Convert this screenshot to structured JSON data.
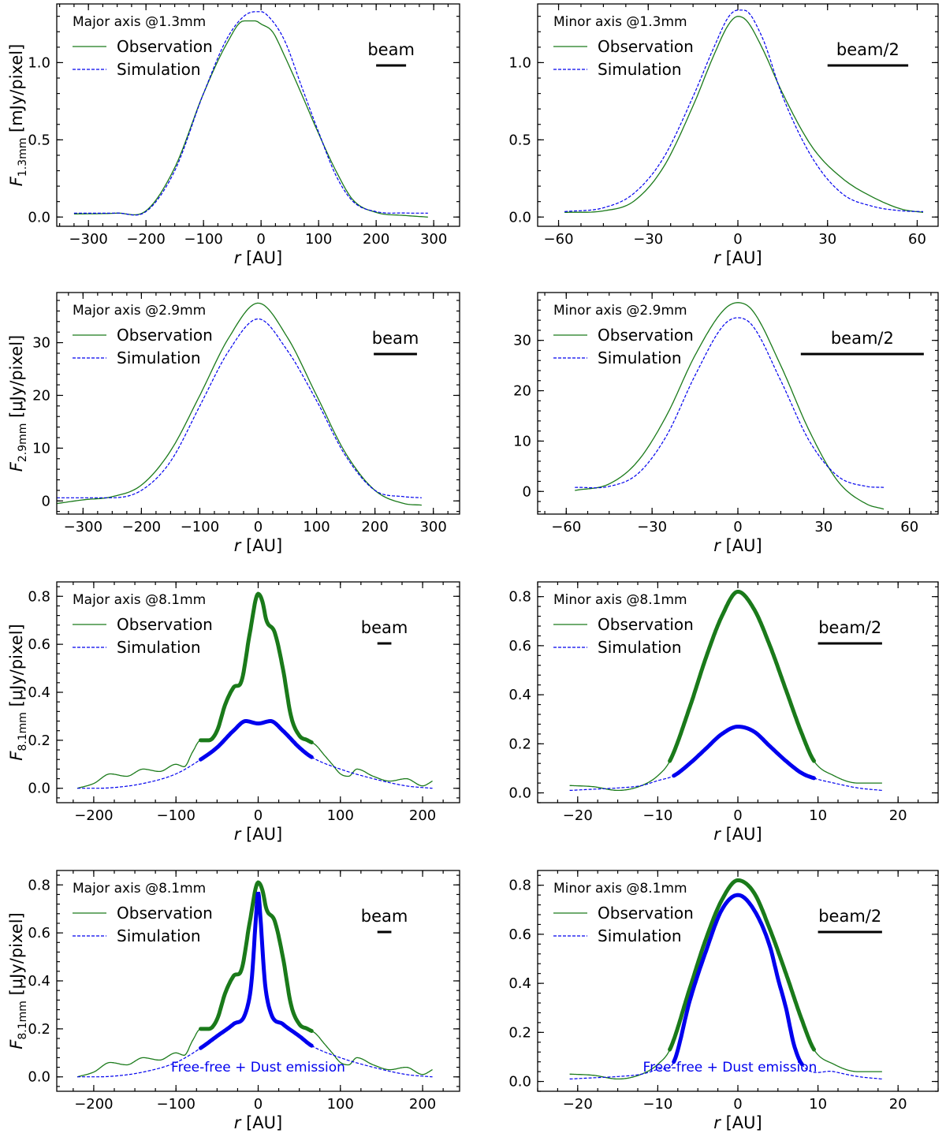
{
  "colors": {
    "observation": "#1a7a1a",
    "simulation": "#0000ee",
    "axes": "#000000"
  },
  "legend": {
    "observation": "Observation",
    "simulation": "Simulation"
  },
  "xlabel": "r [AU]",
  "ylabels": [
    {
      "var": "F",
      "sub": "1.3mm",
      "unit": "[mJy/pixel]"
    },
    {
      "var": "F",
      "sub": "2.9mm",
      "unit": "[μJy/pixel]"
    },
    {
      "var": "F",
      "sub": "8.1mm",
      "unit": "[μJy/pixel]"
    },
    {
      "var": "F",
      "sub": "8.1mm",
      "unit": "[μJy/pixel]"
    }
  ],
  "chart_data": [
    {
      "id": "p1",
      "type": "line",
      "title": "Major axis @1.3mm",
      "beam_label": "beam",
      "beam_range": [
        200,
        252
      ],
      "xlim": [
        -355,
        345
      ],
      "ylim": [
        -0.06,
        1.38
      ],
      "xticks": [
        -300,
        -200,
        -100,
        0,
        100,
        200,
        300
      ],
      "yticks": [
        0,
        0.5,
        1.0
      ],
      "ytick_labels": [
        "0.0",
        "0.5",
        "1.0"
      ],
      "observation": {
        "x": [
          -325,
          -250,
          -200,
          -150,
          -100,
          -60,
          -30,
          -10,
          0,
          20,
          40,
          70,
          100,
          130,
          160,
          200,
          250,
          290
        ],
        "y": [
          0.02,
          0.025,
          0.04,
          0.32,
          0.8,
          1.12,
          1.27,
          1.27,
          1.25,
          1.2,
          1.05,
          0.8,
          0.54,
          0.3,
          0.11,
          0.03,
          0.01,
          0.0
        ],
        "style": "thin"
      },
      "simulation": {
        "x": [
          -325,
          -250,
          -200,
          -150,
          -100,
          -60,
          -30,
          -10,
          0,
          10,
          40,
          70,
          100,
          130,
          160,
          200,
          250,
          290
        ],
        "y": [
          0.025,
          0.026,
          0.035,
          0.3,
          0.8,
          1.15,
          1.3,
          1.33,
          1.33,
          1.31,
          1.15,
          0.85,
          0.55,
          0.27,
          0.1,
          0.035,
          0.026,
          0.025
        ],
        "style": "dashed"
      },
      "annotation": ""
    },
    {
      "id": "p2",
      "type": "line",
      "title": "Minor axis @1.3mm",
      "beam_label": "beam/2",
      "beam_range": [
        30,
        57
      ],
      "xlim": [
        -67,
        67
      ],
      "ylim": [
        -0.06,
        1.38
      ],
      "xticks": [
        -60,
        -30,
        0,
        30,
        60
      ],
      "yticks": [
        0,
        0.5,
        1.0
      ],
      "ytick_labels": [
        "0.0",
        "0.5",
        "1.0"
      ],
      "observation": {
        "x": [
          -58,
          -45,
          -35,
          -25,
          -15,
          -8,
          -3,
          0,
          3,
          8,
          15,
          25,
          35,
          45,
          55,
          62
        ],
        "y": [
          0.03,
          0.04,
          0.1,
          0.32,
          0.72,
          1.05,
          1.25,
          1.3,
          1.27,
          1.1,
          0.8,
          0.45,
          0.25,
          0.13,
          0.05,
          0.03
        ],
        "style": "thin"
      },
      "simulation": {
        "x": [
          -58,
          -45,
          -35,
          -25,
          -15,
          -8,
          -3,
          0,
          2,
          8,
          15,
          25,
          35,
          45,
          55,
          62
        ],
        "y": [
          0.035,
          0.06,
          0.15,
          0.38,
          0.78,
          1.1,
          1.3,
          1.34,
          1.34,
          1.17,
          0.78,
          0.38,
          0.15,
          0.07,
          0.04,
          0.035
        ],
        "style": "dashed"
      },
      "annotation": ""
    },
    {
      "id": "p3",
      "type": "line",
      "title": "Major axis @2.9mm",
      "beam_label": "beam",
      "beam_range": [
        198,
        272
      ],
      "xlim": [
        -345,
        345
      ],
      "ylim": [
        -2.5,
        39.5
      ],
      "xticks": [
        -300,
        -200,
        -100,
        0,
        100,
        200,
        300
      ],
      "yticks": [
        0,
        10,
        20,
        30
      ],
      "ytick_labels": [
        "0",
        "10",
        "20",
        "30"
      ],
      "observation": {
        "x": [
          -345,
          -300,
          -250,
          -200,
          -150,
          -100,
          -50,
          0,
          50,
          100,
          150,
          200,
          250,
          280
        ],
        "y": [
          -0.5,
          0.2,
          0.8,
          3,
          9.5,
          20,
          31,
          37.5,
          31,
          20,
          9,
          2,
          -0.5,
          -0.8
        ],
        "style": "thin"
      },
      "simulation": {
        "x": [
          -345,
          -300,
          -250,
          -200,
          -150,
          -100,
          -50,
          0,
          50,
          100,
          150,
          200,
          250,
          280
        ],
        "y": [
          0.6,
          0.6,
          0.6,
          2,
          7.5,
          18,
          28.5,
          34.5,
          28.5,
          19,
          8.5,
          2,
          0.8,
          0.6
        ],
        "style": "dashed"
      },
      "annotation": ""
    },
    {
      "id": "p4",
      "type": "line",
      "title": "Minor axis @2.9mm",
      "beam_label": "beam/2",
      "beam_range": [
        22,
        65
      ],
      "xlim": [
        -70,
        70
      ],
      "ylim": [
        -4.5,
        39.5
      ],
      "xticks": [
        -60,
        -30,
        0,
        30,
        60
      ],
      "yticks": [
        0,
        10,
        20,
        30
      ],
      "ytick_labels": [
        "0",
        "10",
        "20",
        "30"
      ],
      "observation": {
        "x": [
          -57,
          -45,
          -35,
          -25,
          -15,
          -5,
          0,
          5,
          15,
          25,
          35,
          45,
          51
        ],
        "y": [
          0.2,
          1.5,
          6,
          15,
          27,
          36,
          37.5,
          36,
          25,
          12,
          2,
          -2.5,
          -3.5
        ],
        "style": "thin"
      },
      "simulation": {
        "x": [
          -57,
          -45,
          -35,
          -25,
          -15,
          -5,
          0,
          5,
          15,
          25,
          35,
          45,
          51
        ],
        "y": [
          0.8,
          1,
          3.5,
          11,
          23,
          33,
          34.5,
          33,
          22,
          10,
          3,
          1,
          0.8
        ],
        "style": "dashed"
      },
      "annotation": ""
    },
    {
      "id": "p5",
      "type": "line",
      "title": "Major axis @8.1mm",
      "beam_label": "beam",
      "beam_range": [
        145,
        162
      ],
      "xlim": [
        -245,
        245
      ],
      "ylim": [
        -0.06,
        0.86
      ],
      "xticks": [
        -200,
        -100,
        0,
        100,
        200
      ],
      "yticks": [
        0,
        0.2,
        0.4,
        0.6,
        0.8
      ],
      "ytick_labels": [
        "0.0",
        "0.2",
        "0.4",
        "0.6",
        "0.8"
      ],
      "observation": {
        "x": [
          -220,
          -200,
          -180,
          -160,
          -140,
          -120,
          -100,
          -90,
          -80,
          -70,
          -60,
          -50,
          -40,
          -30,
          -20,
          -10,
          0,
          5,
          10,
          20,
          30,
          40,
          50,
          60,
          70,
          80,
          90,
          100,
          110,
          120,
          140,
          160,
          180,
          200,
          212
        ],
        "y": [
          0,
          0.02,
          0.06,
          0.05,
          0.08,
          0.07,
          0.1,
          0.09,
          0.15,
          0.2,
          0.2,
          0.24,
          0.35,
          0.42,
          0.45,
          0.65,
          0.81,
          0.78,
          0.7,
          0.65,
          0.5,
          0.3,
          0.22,
          0.2,
          0.18,
          0.14,
          0.1,
          0.06,
          0.05,
          0.08,
          0.05,
          0.03,
          0.04,
          0.01,
          0.03
        ],
        "style": "mixed",
        "bold_range": [
          -70,
          65
        ]
      },
      "simulation": {
        "x": [
          -220,
          -180,
          -140,
          -100,
          -70,
          -50,
          -30,
          -15,
          0,
          15,
          30,
          50,
          65,
          100,
          140,
          180,
          212
        ],
        "y": [
          0,
          0.002,
          0.02,
          0.06,
          0.12,
          0.17,
          0.24,
          0.28,
          0.27,
          0.28,
          0.24,
          0.17,
          0.13,
          0.08,
          0.04,
          0.01,
          0
        ],
        "style": "mixed",
        "bold_range": [
          -70,
          65
        ]
      },
      "annotation": ""
    },
    {
      "id": "p6",
      "type": "line",
      "title": "Minor axis @8.1mm",
      "beam_label": "beam/2",
      "beam_range": [
        10,
        18
      ],
      "xlim": [
        -25,
        25
      ],
      "ylim": [
        -0.04,
        0.86
      ],
      "xticks": [
        -20,
        -10,
        0,
        10,
        20
      ],
      "yticks": [
        0,
        0.2,
        0.4,
        0.6,
        0.8
      ],
      "ytick_labels": [
        "0.0",
        "0.2",
        "0.4",
        "0.6",
        "0.8"
      ],
      "observation": {
        "x": [
          -21,
          -18,
          -15,
          -12,
          -10,
          -8.5,
          -6,
          -4,
          -2,
          0,
          2,
          4,
          6,
          8,
          9.5,
          12,
          15,
          18
        ],
        "y": [
          0.03,
          0.025,
          0.01,
          0.03,
          0.07,
          0.13,
          0.35,
          0.55,
          0.72,
          0.82,
          0.75,
          0.6,
          0.42,
          0.24,
          0.13,
          0.07,
          0.04,
          0.04
        ],
        "style": "mixed",
        "bold_range": [
          -8.5,
          9.5
        ]
      },
      "simulation": {
        "x": [
          -21,
          -18,
          -15,
          -12,
          -10,
          -8,
          -6,
          -4,
          -2,
          0,
          2,
          4,
          6,
          8,
          9.5,
          12,
          15,
          18
        ],
        "y": [
          0.01,
          0.015,
          0.02,
          0.03,
          0.05,
          0.07,
          0.12,
          0.18,
          0.24,
          0.27,
          0.25,
          0.19,
          0.13,
          0.08,
          0.06,
          0.04,
          0.02,
          0.01
        ],
        "style": "mixed",
        "bold_range": [
          -8,
          9.5
        ]
      },
      "annotation": ""
    },
    {
      "id": "p7",
      "type": "line",
      "title": "Major axis @8.1mm",
      "beam_label": "beam",
      "beam_range": [
        145,
        162
      ],
      "xlim": [
        -245,
        245
      ],
      "ylim": [
        -0.06,
        0.86
      ],
      "xticks": [
        -200,
        -100,
        0,
        100,
        200
      ],
      "yticks": [
        0,
        0.2,
        0.4,
        0.6,
        0.8
      ],
      "ytick_labels": [
        "0.0",
        "0.2",
        "0.4",
        "0.6",
        "0.8"
      ],
      "observation": {
        "x": [
          -220,
          -200,
          -180,
          -160,
          -140,
          -120,
          -100,
          -90,
          -80,
          -70,
          -60,
          -50,
          -40,
          -30,
          -20,
          -10,
          0,
          5,
          10,
          20,
          30,
          40,
          50,
          60,
          70,
          80,
          90,
          100,
          110,
          120,
          140,
          160,
          180,
          200,
          212
        ],
        "y": [
          0,
          0.02,
          0.06,
          0.05,
          0.08,
          0.07,
          0.1,
          0.09,
          0.15,
          0.2,
          0.2,
          0.24,
          0.35,
          0.42,
          0.45,
          0.65,
          0.81,
          0.78,
          0.7,
          0.65,
          0.5,
          0.3,
          0.22,
          0.2,
          0.18,
          0.14,
          0.1,
          0.06,
          0.05,
          0.08,
          0.05,
          0.03,
          0.04,
          0.01,
          0.03
        ],
        "style": "mixed",
        "bold_range": [
          -70,
          65
        ]
      },
      "simulation": {
        "x": [
          -220,
          -180,
          -140,
          -100,
          -70,
          -50,
          -30,
          -15,
          -8,
          -3,
          0,
          3,
          8,
          15,
          30,
          50,
          65,
          100,
          140,
          180,
          212
        ],
        "y": [
          0,
          0.002,
          0.02,
          0.06,
          0.12,
          0.17,
          0.22,
          0.27,
          0.4,
          0.65,
          0.77,
          0.65,
          0.4,
          0.27,
          0.22,
          0.17,
          0.13,
          0.08,
          0.04,
          0.01,
          0
        ],
        "style": "mixed",
        "bold_range": [
          -70,
          65
        ]
      },
      "annotation": "Free-free + Dust emission"
    },
    {
      "id": "p8",
      "type": "line",
      "title": "Minor axis @8.1mm",
      "beam_label": "beam/2",
      "beam_range": [
        10,
        18
      ],
      "xlim": [
        -25,
        25
      ],
      "ylim": [
        -0.04,
        0.86
      ],
      "xticks": [
        -20,
        -10,
        0,
        10,
        20
      ],
      "yticks": [
        0,
        0.2,
        0.4,
        0.6,
        0.8
      ],
      "ytick_labels": [
        "0.0",
        "0.2",
        "0.4",
        "0.6",
        "0.8"
      ],
      "observation": {
        "x": [
          -21,
          -18,
          -15,
          -12,
          -10,
          -8.5,
          -6,
          -4,
          -2,
          0,
          2,
          4,
          6,
          8,
          9.5,
          12,
          15,
          18
        ],
        "y": [
          0.03,
          0.025,
          0.01,
          0.03,
          0.07,
          0.13,
          0.38,
          0.58,
          0.74,
          0.82,
          0.77,
          0.62,
          0.44,
          0.25,
          0.13,
          0.07,
          0.04,
          0.04
        ],
        "style": "mixed",
        "bold_range": [
          -8.5,
          9.5
        ]
      },
      "simulation": {
        "x": [
          -21,
          -18,
          -15,
          -12,
          -10,
          -8,
          -6,
          -4,
          -2,
          0,
          2,
          4,
          5,
          6,
          7,
          8,
          12,
          15,
          18
        ],
        "y": [
          0.01,
          0.015,
          0.02,
          0.03,
          0.05,
          0.08,
          0.33,
          0.53,
          0.7,
          0.76,
          0.7,
          0.55,
          0.42,
          0.3,
          0.15,
          0.07,
          0.04,
          0.02,
          0.01
        ],
        "style": "mixed",
        "bold_range": [
          -8,
          8
        ]
      },
      "annotation": "Free-free + Dust emission"
    }
  ]
}
